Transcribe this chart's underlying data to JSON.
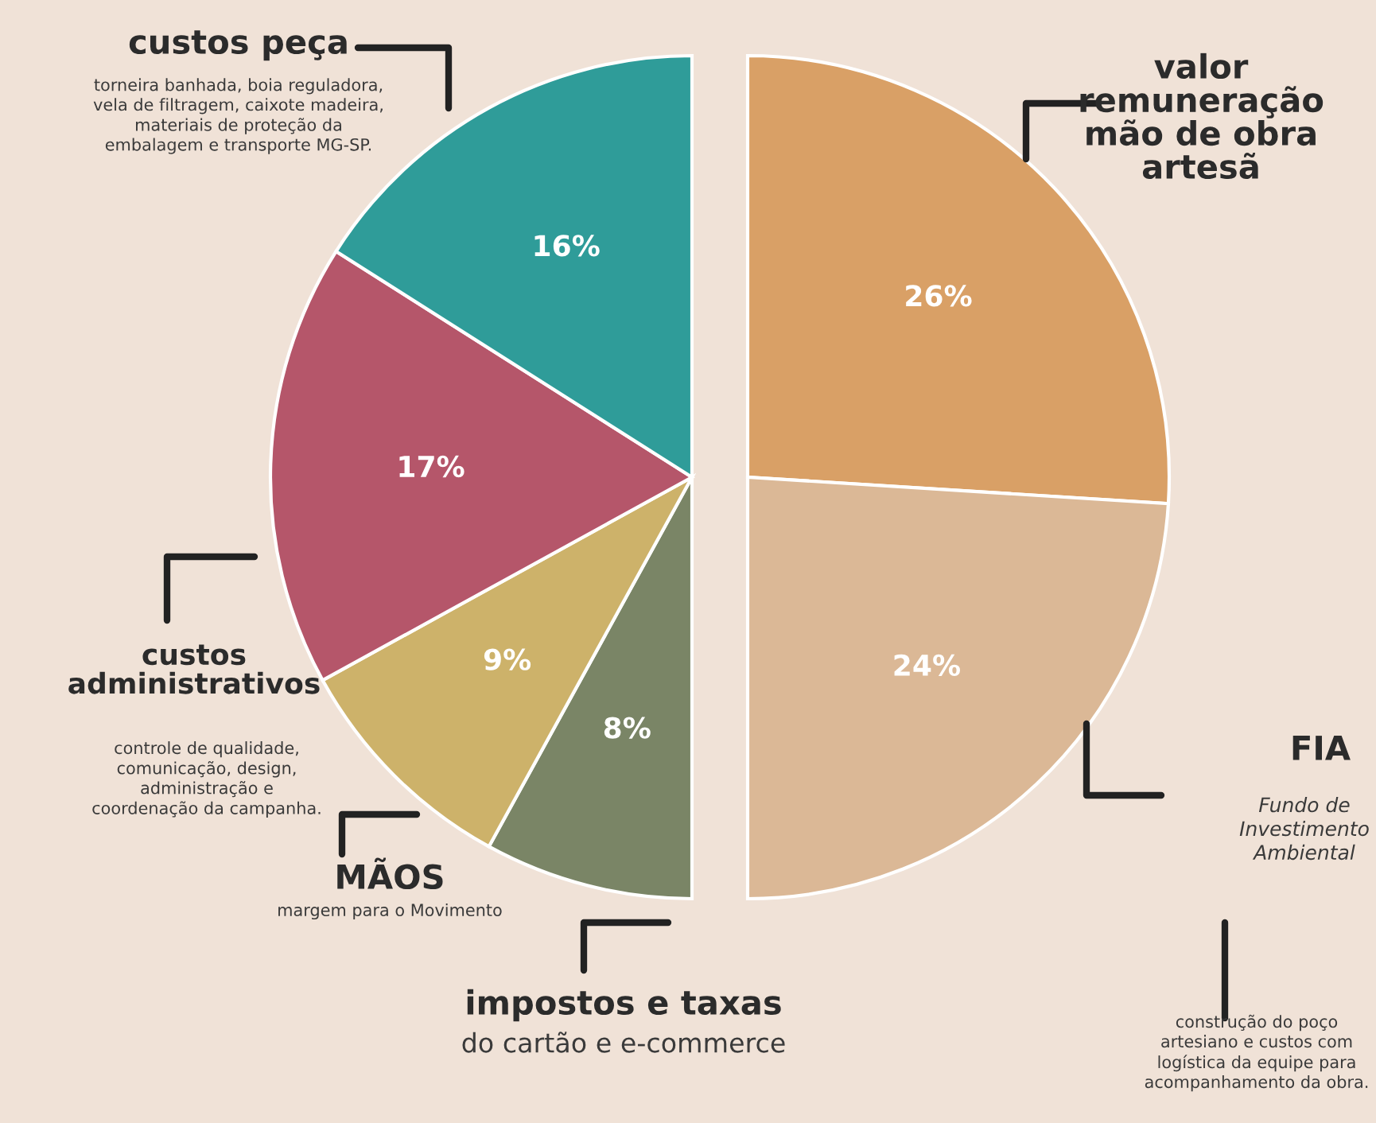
{
  "chart_data": {
    "type": "pie",
    "categories": [
      "valor\nremuneração\nmão de obra\nartesã",
      "FIA",
      "impostos e taxas",
      "MÃOS",
      "custos\nadministrativos",
      "custos peça"
    ],
    "values": [
      26,
      24,
      8,
      9,
      17,
      16
    ],
    "colors": [
      "#d9a066",
      "#dbb896",
      "#7a8566",
      "#cdb26a",
      "#b5566a",
      "#2f9c99"
    ],
    "value_labels": [
      "26%",
      "24%",
      "8%",
      "9%",
      "17%",
      "16%"
    ],
    "annotations": [
      "Fundo de\nInvestimento\nAmbiental",
      "construção do poço\nartesiano e custos com\nlogística da equipe para\nacompanhamento da obra.",
      "do cartão e e-commerce",
      "margem para o Movimento",
      "controle de qualidade,\ncomunicação, design,\nadministração e\ncoordenação da campanha.",
      "torneira banhada, boia reguladora,\nvela de filtragem, caixote madeira,\nmateriais de proteção da\nembalagem e transporte MG-SP."
    ]
  }
}
